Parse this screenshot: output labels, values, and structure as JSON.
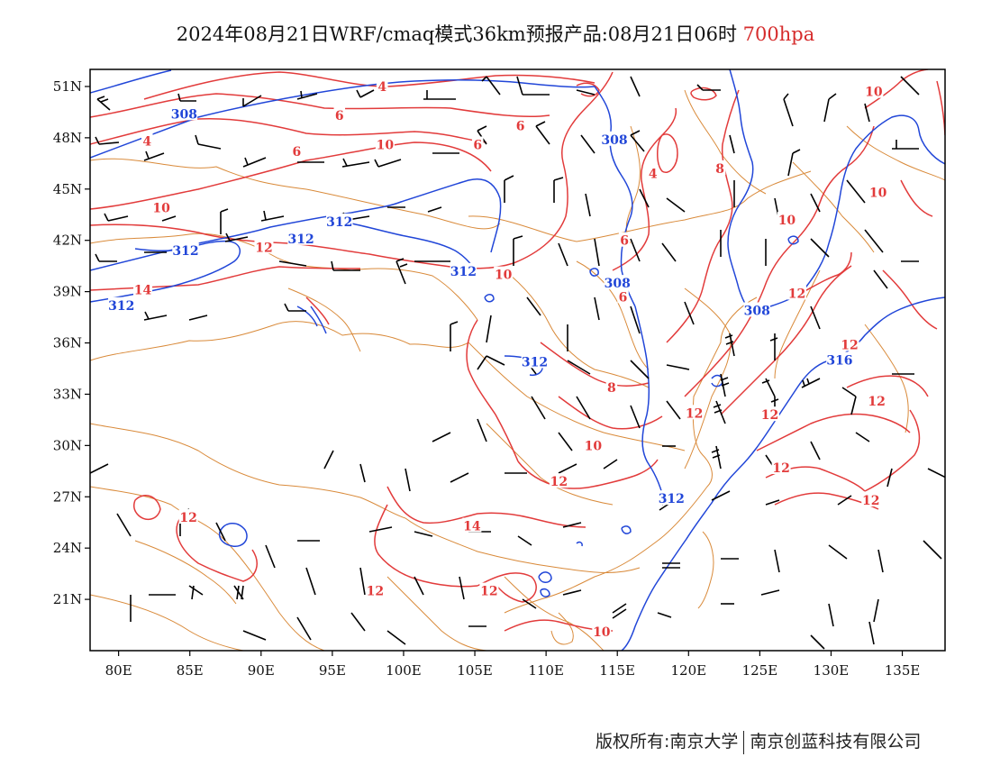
{
  "title": {
    "main": "2024年08月21日WRF/cmaq模式36km预报产品:08月21日06时",
    "level": "700hpa"
  },
  "colors": {
    "temperature": "#e23b3b",
    "height": "#2146d8",
    "boundary": "#d98a3a",
    "wind": "#000000",
    "level_text": "#d62c2c"
  },
  "axes": {
    "lon_range": [
      78,
      138
    ],
    "lat_range": [
      18,
      52
    ],
    "lon_ticks": [
      80,
      85,
      90,
      95,
      100,
      105,
      110,
      115,
      120,
      125,
      130,
      135
    ],
    "lon_labels": [
      "80E",
      "85E",
      "90E",
      "95E",
      "100E",
      "105E",
      "110E",
      "115E",
      "120E",
      "125E",
      "130E",
      "135E"
    ],
    "lat_ticks": [
      51,
      48,
      45,
      42,
      39,
      36,
      33,
      30,
      27,
      24,
      21
    ],
    "lat_labels": [
      "51N",
      "48N",
      "45N",
      "42N",
      "39N",
      "36N",
      "33N",
      "30N",
      "27N",
      "24N",
      "21N"
    ]
  },
  "contour_labels": {
    "temperature": [
      {
        "text": "4",
        "lon": 98.5,
        "lat": 51.0
      },
      {
        "text": "6",
        "lon": 95.5,
        "lat": 49.3
      },
      {
        "text": "4",
        "lon": 82.0,
        "lat": 47.8
      },
      {
        "text": "6",
        "lon": 108.2,
        "lat": 48.7
      },
      {
        "text": "6",
        "lon": 92.5,
        "lat": 47.2
      },
      {
        "text": "10",
        "lon": 98.7,
        "lat": 47.6
      },
      {
        "text": "6",
        "lon": 105.2,
        "lat": 47.6
      },
      {
        "text": "10",
        "lon": 83.0,
        "lat": 43.9
      },
      {
        "text": "12",
        "lon": 90.2,
        "lat": 41.6
      },
      {
        "text": "14",
        "lon": 81.7,
        "lat": 39.1
      },
      {
        "text": "10",
        "lon": 107.0,
        "lat": 40.0
      },
      {
        "text": "4",
        "lon": 117.5,
        "lat": 45.9
      },
      {
        "text": "6",
        "lon": 115.5,
        "lat": 42.0
      },
      {
        "text": "6",
        "lon": 115.4,
        "lat": 38.7
      },
      {
        "text": "8",
        "lon": 122.2,
        "lat": 46.2
      },
      {
        "text": "10",
        "lon": 126.9,
        "lat": 43.2
      },
      {
        "text": "10",
        "lon": 133.0,
        "lat": 50.7
      },
      {
        "text": "10",
        "lon": 133.3,
        "lat": 44.8
      },
      {
        "text": "12",
        "lon": 127.6,
        "lat": 38.9
      },
      {
        "text": "12",
        "lon": 131.3,
        "lat": 35.9
      },
      {
        "text": "8",
        "lon": 114.6,
        "lat": 33.4
      },
      {
        "text": "12",
        "lon": 120.4,
        "lat": 31.9
      },
      {
        "text": "12",
        "lon": 125.7,
        "lat": 31.8
      },
      {
        "text": "10",
        "lon": 113.3,
        "lat": 30.0
      },
      {
        "text": "12",
        "lon": 133.2,
        "lat": 32.6
      },
      {
        "text": "12",
        "lon": 126.5,
        "lat": 28.7
      },
      {
        "text": "12",
        "lon": 110.9,
        "lat": 27.9
      },
      {
        "text": "12",
        "lon": 132.8,
        "lat": 26.8
      },
      {
        "text": "12",
        "lon": 84.9,
        "lat": 25.8
      },
      {
        "text": "14",
        "lon": 104.8,
        "lat": 25.3
      },
      {
        "text": "12",
        "lon": 98.0,
        "lat": 21.5
      },
      {
        "text": "12",
        "lon": 106.0,
        "lat": 21.5
      },
      {
        "text": "10",
        "lon": 113.9,
        "lat": 19.1
      }
    ],
    "height": [
      {
        "text": "308",
        "lon": 84.6,
        "lat": 49.4
      },
      {
        "text": "308",
        "lon": 114.8,
        "lat": 47.9
      },
      {
        "text": "312",
        "lon": 95.5,
        "lat": 43.1
      },
      {
        "text": "312",
        "lon": 92.8,
        "lat": 42.1
      },
      {
        "text": "312",
        "lon": 84.7,
        "lat": 41.4
      },
      {
        "text": "312",
        "lon": 104.2,
        "lat": 40.2
      },
      {
        "text": "312",
        "lon": 80.2,
        "lat": 38.2
      },
      {
        "text": "308",
        "lon": 115.0,
        "lat": 39.5
      },
      {
        "text": "308",
        "lon": 124.8,
        "lat": 37.9
      },
      {
        "text": "312",
        "lon": 109.2,
        "lat": 34.9
      },
      {
        "text": "316",
        "lon": 130.6,
        "lat": 35.0
      },
      {
        "text": "312",
        "lon": 118.8,
        "lat": 26.9
      }
    ]
  },
  "footer": {
    "copyright": "版权所有:南京大学",
    "company": "南京创蓝科技有限公司"
  }
}
